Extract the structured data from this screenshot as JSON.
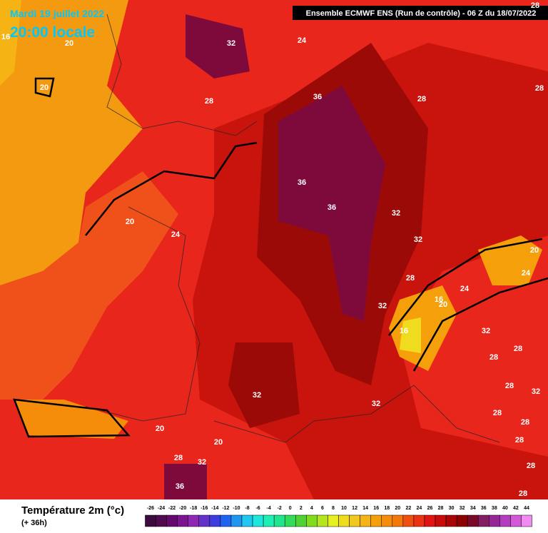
{
  "header": {
    "date": "Mardi 19 juillet 2022",
    "time": "20:00 locale",
    "run": "Ensemble ECMWF ENS  (Run de contrôle)  -  06 Z du 18/07/2022"
  },
  "map_labels": [
    16,
    20,
    20,
    32,
    24,
    28,
    36,
    28,
    28,
    28,
    36,
    36,
    32,
    20,
    24,
    32,
    20,
    24,
    28,
    24,
    16,
    20,
    32,
    16,
    32,
    28,
    28,
    28,
    32,
    32,
    32,
    28,
    28,
    20,
    20,
    28,
    28,
    32,
    28,
    36,
    28
  ],
  "legend": {
    "title": "Température 2m (°c)",
    "subtitle": "(+ 36h)",
    "ticks": [
      -26,
      -24,
      -22,
      -20,
      -18,
      -16,
      -14,
      -12,
      -10,
      -8,
      -6,
      -4,
      -2,
      0,
      2,
      4,
      6,
      8,
      10,
      12,
      14,
      16,
      18,
      20,
      22,
      24,
      26,
      28,
      30,
      32,
      34,
      36,
      38,
      40,
      42,
      44
    ],
    "colors": [
      "#3c0a3c",
      "#500a50",
      "#640a6e",
      "#7a1490",
      "#8c28b4",
      "#6432c8",
      "#3c3cdc",
      "#1e64f0",
      "#1e96f0",
      "#1ec8f0",
      "#1ee6dc",
      "#1ef0b4",
      "#1ee68c",
      "#32dc5a",
      "#50d232",
      "#82dc1e",
      "#b4e61e",
      "#e6f01e",
      "#f0dc1e",
      "#f0c81e",
      "#f5b414",
      "#f5a00a",
      "#f58c0a",
      "#f5780a",
      "#f0500f",
      "#eb3214",
      "#e11414",
      "#c80a0a",
      "#aa0505",
      "#8c0000",
      "#780a28",
      "#821e64",
      "#962896",
      "#b43cbe",
      "#d25ad7",
      "#f08cf0"
    ]
  }
}
